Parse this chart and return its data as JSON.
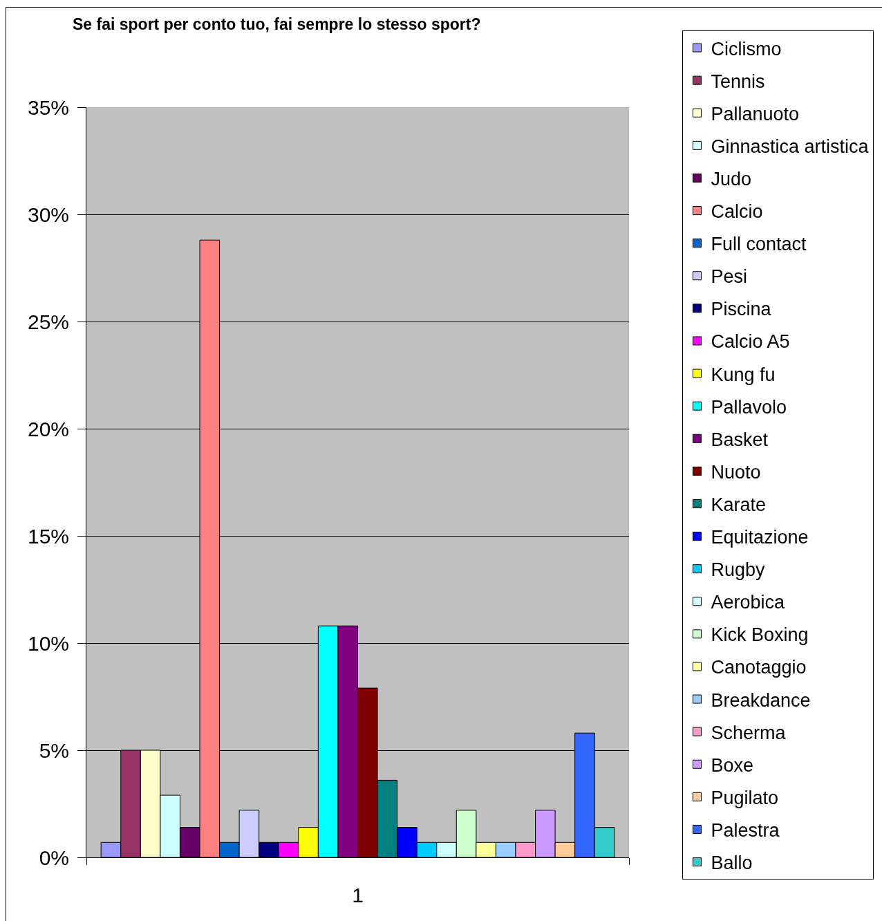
{
  "chart_data": {
    "type": "bar",
    "title": "Se fai sport per conto tuo, fai sempre lo stesso sport?",
    "categories": [
      "1"
    ],
    "series": [
      {
        "name": "Ciclismo",
        "color": "#9999ff",
        "values": [
          0.7
        ]
      },
      {
        "name": "Tennis",
        "color": "#993366",
        "values": [
          5.0
        ]
      },
      {
        "name": "Pallanuoto",
        "color": "#ffffcc",
        "values": [
          5.0
        ]
      },
      {
        "name": "Ginnastica artistica",
        "color": "#ccffff",
        "values": [
          2.9
        ]
      },
      {
        "name": "Judo",
        "color": "#660066",
        "values": [
          1.4
        ]
      },
      {
        "name": "Calcio",
        "color": "#ff8080",
        "values": [
          28.8
        ]
      },
      {
        "name": "Full contact",
        "color": "#0066cc",
        "values": [
          0.7
        ]
      },
      {
        "name": "Pesi",
        "color": "#ccccff",
        "values": [
          2.2
        ]
      },
      {
        "name": "Piscina",
        "color": "#000080",
        "values": [
          0.7
        ]
      },
      {
        "name": "Calcio A5",
        "color": "#ff00ff",
        "values": [
          0.7
        ]
      },
      {
        "name": "Kung fu",
        "color": "#ffff00",
        "values": [
          1.4
        ]
      },
      {
        "name": "Pallavolo",
        "color": "#00ffff",
        "values": [
          10.8
        ]
      },
      {
        "name": "Basket",
        "color": "#800080",
        "values": [
          10.8
        ]
      },
      {
        "name": "Nuoto",
        "color": "#800000",
        "values": [
          7.9
        ]
      },
      {
        "name": "Karate",
        "color": "#008080",
        "values": [
          3.6
        ]
      },
      {
        "name": "Equitazione",
        "color": "#0000ff",
        "values": [
          1.4
        ]
      },
      {
        "name": "Rugby",
        "color": "#00ccff",
        "values": [
          0.7
        ]
      },
      {
        "name": "Aerobica",
        "color": "#ccffff",
        "values": [
          0.7
        ]
      },
      {
        "name": "Kick Boxing",
        "color": "#ccffcc",
        "values": [
          2.2
        ]
      },
      {
        "name": "Canotaggio",
        "color": "#ffff99",
        "values": [
          0.7
        ]
      },
      {
        "name": "Breakdance",
        "color": "#99ccff",
        "values": [
          0.7
        ]
      },
      {
        "name": "Scherma",
        "color": "#ff99cc",
        "values": [
          0.7
        ]
      },
      {
        "name": "Boxe",
        "color": "#cc99ff",
        "values": [
          2.2
        ]
      },
      {
        "name": "Pugilato",
        "color": "#ffcc99",
        "values": [
          0.7
        ]
      },
      {
        "name": "Palestra",
        "color": "#3366ff",
        "values": [
          5.8
        ]
      },
      {
        "name": "Ballo",
        "color": "#33cccc",
        "values": [
          1.4
        ]
      }
    ],
    "ylim": [
      0,
      35
    ],
    "yticks": [
      {
        "value": 0,
        "label": "0%"
      },
      {
        "value": 5,
        "label": "5%"
      },
      {
        "value": 10,
        "label": "10%"
      },
      {
        "value": 15,
        "label": "15%"
      },
      {
        "value": 20,
        "label": "20%"
      },
      {
        "value": 25,
        "label": "25%"
      },
      {
        "value": 30,
        "label": "30%"
      },
      {
        "value": 35,
        "label": "35%"
      }
    ],
    "grid": "y",
    "legend": "right"
  }
}
